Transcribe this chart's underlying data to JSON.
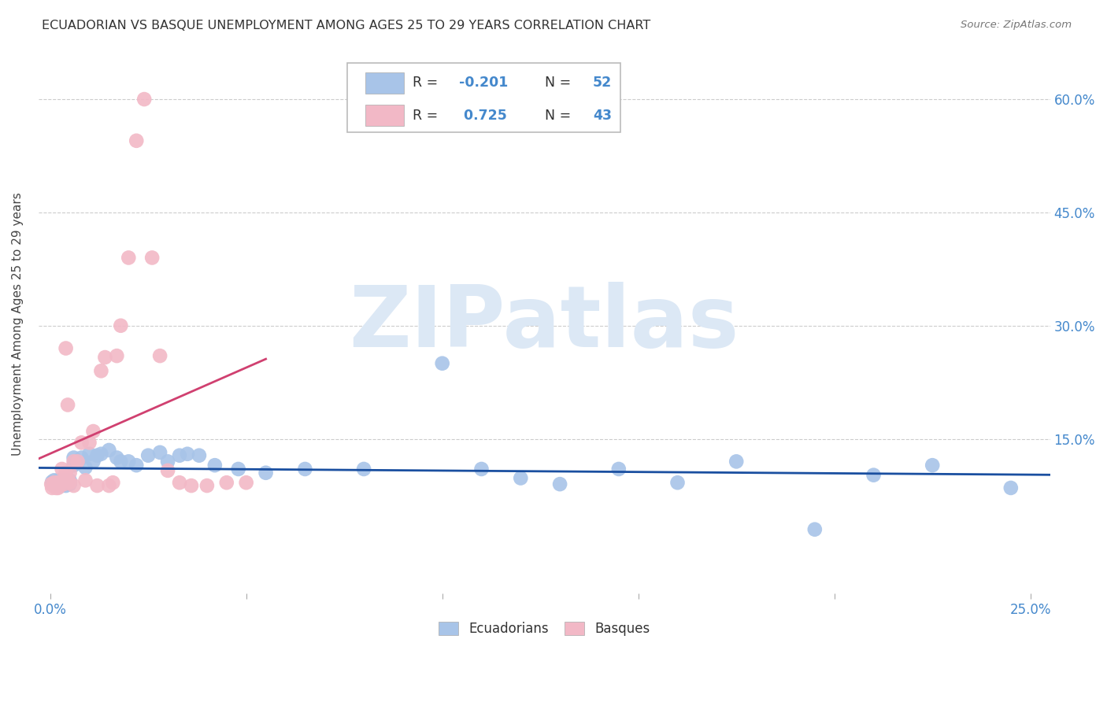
{
  "title": "ECUADORIAN VS BASQUE UNEMPLOYMENT AMONG AGES 25 TO 29 YEARS CORRELATION CHART",
  "source": "Source: ZipAtlas.com",
  "ylabel": "Unemployment Among Ages 25 to 29 years",
  "xlim": [
    -0.003,
    0.255
  ],
  "ylim": [
    -0.055,
    0.66
  ],
  "xtick_vals": [
    0.0,
    0.05,
    0.1,
    0.15,
    0.2,
    0.25
  ],
  "xtick_labels": [
    "0.0%",
    "",
    "",
    "",
    "",
    "25.0%"
  ],
  "yticks_right": [
    0.15,
    0.3,
    0.45,
    0.6
  ],
  "ytick_labels_right": [
    "15.0%",
    "30.0%",
    "45.0%",
    "60.0%"
  ],
  "blue_color": "#a8c4e8",
  "pink_color": "#f2b8c6",
  "blue_line_color": "#1a4fa0",
  "pink_line_color": "#d04070",
  "blue_legend_color": "#4488cc",
  "watermark_color": "#dce8f5",
  "legend_r_blue": "-0.201",
  "legend_n_blue": "52",
  "legend_r_pink": "0.725",
  "legend_n_pink": "43",
  "blue_x": [
    0.0005,
    0.001,
    0.001,
    0.0015,
    0.002,
    0.002,
    0.002,
    0.003,
    0.003,
    0.003,
    0.004,
    0.004,
    0.004,
    0.005,
    0.005,
    0.005,
    0.006,
    0.006,
    0.007,
    0.008,
    0.009,
    0.01,
    0.011,
    0.012,
    0.013,
    0.015,
    0.017,
    0.018,
    0.02,
    0.022,
    0.025,
    0.028,
    0.03,
    0.033,
    0.035,
    0.038,
    0.042,
    0.048,
    0.055,
    0.065,
    0.08,
    0.1,
    0.11,
    0.12,
    0.13,
    0.145,
    0.16,
    0.175,
    0.195,
    0.21,
    0.225,
    0.245
  ],
  "blue_y": [
    0.093,
    0.092,
    0.095,
    0.088,
    0.09,
    0.095,
    0.092,
    0.088,
    0.092,
    0.095,
    0.088,
    0.092,
    0.095,
    0.09,
    0.092,
    0.095,
    0.115,
    0.125,
    0.118,
    0.125,
    0.112,
    0.13,
    0.12,
    0.128,
    0.13,
    0.135,
    0.125,
    0.12,
    0.12,
    0.115,
    0.128,
    0.132,
    0.12,
    0.128,
    0.13,
    0.128,
    0.115,
    0.11,
    0.105,
    0.11,
    0.11,
    0.25,
    0.11,
    0.098,
    0.09,
    0.11,
    0.092,
    0.12,
    0.03,
    0.102,
    0.115,
    0.085
  ],
  "pink_x": [
    0.0003,
    0.0005,
    0.001,
    0.001,
    0.0015,
    0.0015,
    0.002,
    0.002,
    0.0025,
    0.0025,
    0.003,
    0.003,
    0.0035,
    0.004,
    0.004,
    0.0045,
    0.005,
    0.005,
    0.006,
    0.006,
    0.007,
    0.008,
    0.009,
    0.01,
    0.011,
    0.012,
    0.013,
    0.014,
    0.015,
    0.016,
    0.017,
    0.018,
    0.02,
    0.022,
    0.024,
    0.026,
    0.028,
    0.03,
    0.033,
    0.036,
    0.04,
    0.045,
    0.05
  ],
  "pink_y": [
    0.09,
    0.085,
    0.092,
    0.088,
    0.09,
    0.085,
    0.085,
    0.092,
    0.092,
    0.088,
    0.11,
    0.092,
    0.09,
    0.105,
    0.27,
    0.195,
    0.092,
    0.105,
    0.12,
    0.088,
    0.12,
    0.145,
    0.095,
    0.145,
    0.16,
    0.088,
    0.24,
    0.258,
    0.088,
    0.092,
    0.26,
    0.3,
    0.39,
    0.545,
    0.6,
    0.39,
    0.26,
    0.108,
    0.092,
    0.088,
    0.088,
    0.092,
    0.092
  ]
}
